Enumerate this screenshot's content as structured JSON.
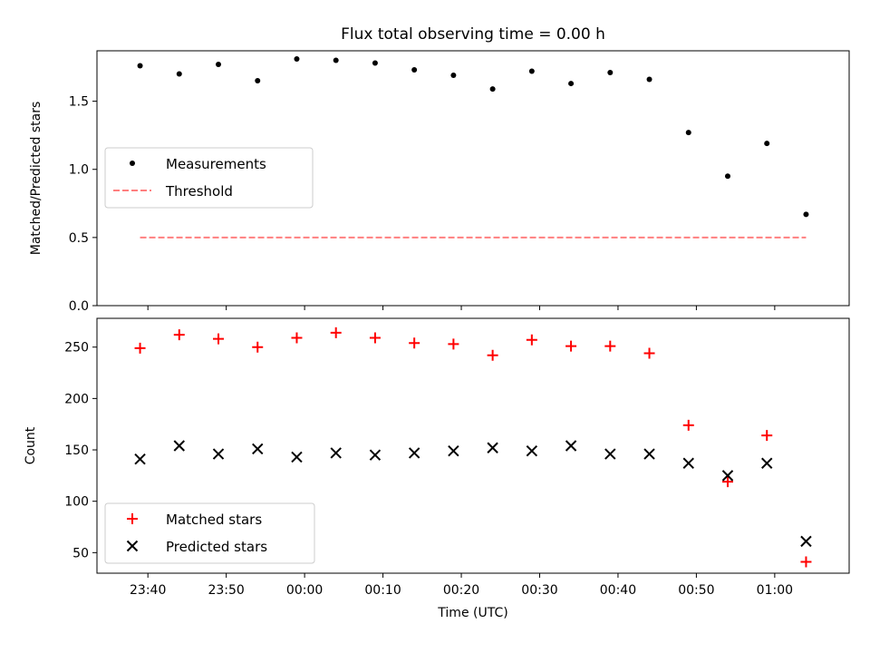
{
  "chart_data": [
    {
      "type": "scatter",
      "title": "Flux total observing time = 0.00 h",
      "xlabel": "",
      "ylabel": "Matched/Predicted stars",
      "ylim": [
        0,
        1.87
      ],
      "yticks": [
        "0.0",
        "0.5",
        "1.0",
        "1.5"
      ],
      "grid": false,
      "legend_position": "center-left",
      "x": [
        "23:39",
        "23:44",
        "23:49",
        "23:54",
        "23:59",
        "00:04",
        "00:09",
        "00:14",
        "00:19",
        "00:24",
        "00:29",
        "00:34",
        "00:39",
        "00:44",
        "00:49",
        "00:54",
        "00:59",
        "01:04"
      ],
      "series": [
        {
          "name": "Measurements",
          "marker": "dot",
          "color": "#000000",
          "values": [
            1.76,
            1.7,
            1.77,
            1.65,
            1.81,
            1.8,
            1.78,
            1.73,
            1.69,
            1.59,
            1.72,
            1.63,
            1.71,
            1.66,
            1.27,
            0.95,
            1.19,
            0.67
          ]
        },
        {
          "name": "Threshold",
          "marker": "dashed-line",
          "color": "#ff7f7f",
          "values": [
            0.5,
            0.5
          ]
        }
      ]
    },
    {
      "type": "scatter",
      "title": "",
      "xlabel": "Time (UTC)",
      "ylabel": "Count",
      "ylim": [
        30,
        278
      ],
      "yticks": [
        "50",
        "100",
        "150",
        "200",
        "250"
      ],
      "xticks": [
        "23:40",
        "23:50",
        "00:00",
        "00:10",
        "00:20",
        "00:30",
        "00:40",
        "00:50",
        "01:00"
      ],
      "grid": false,
      "legend_position": "lower-left",
      "x": [
        "23:39",
        "23:44",
        "23:49",
        "23:54",
        "23:59",
        "00:04",
        "00:09",
        "00:14",
        "00:19",
        "00:24",
        "00:29",
        "00:34",
        "00:39",
        "00:44",
        "00:49",
        "00:54",
        "00:59",
        "01:04"
      ],
      "series": [
        {
          "name": "Matched stars",
          "marker": "plus",
          "color": "#ff0000",
          "values": [
            249,
            262,
            258,
            250,
            259,
            264,
            259,
            254,
            253,
            242,
            257,
            251,
            251,
            244,
            174,
            119,
            164,
            41
          ]
        },
        {
          "name": "Predicted stars",
          "marker": "x",
          "color": "#000000",
          "values": [
            141,
            154,
            146,
            151,
            143,
            147,
            145,
            147,
            149,
            152,
            149,
            154,
            146,
            146,
            137,
            125,
            137,
            61
          ]
        }
      ]
    }
  ]
}
